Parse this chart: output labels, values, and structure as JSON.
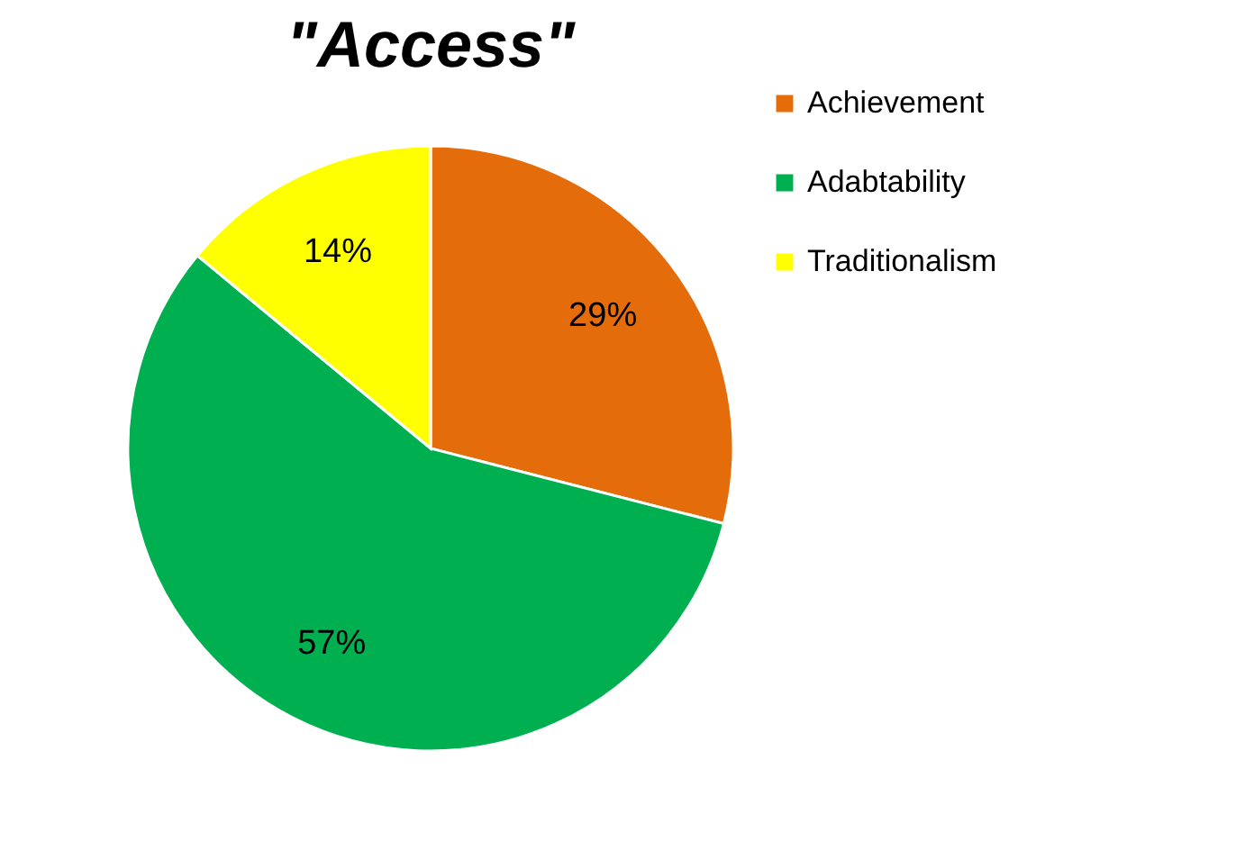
{
  "chart_data": {
    "type": "pie",
    "title": "\"Access\"",
    "categories": [
      "Achievement",
      "Adabtability",
      "Traditionalism"
    ],
    "values": [
      29,
      57,
      14
    ],
    "colors": [
      "#e46c0a",
      "#00b050",
      "#ffff00"
    ],
    "value_labels": [
      "29%",
      "57%",
      "14%"
    ],
    "legend": "right"
  }
}
